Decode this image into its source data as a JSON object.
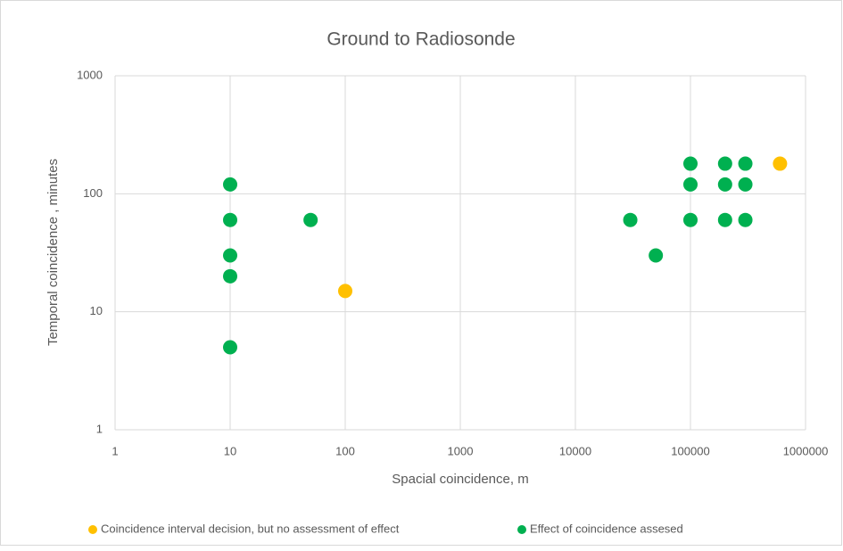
{
  "chart_data": {
    "type": "scatter",
    "title": "Ground to Radiosonde",
    "x_label": "Spacial coincidence, m",
    "y_label": "Temporal coincidence ,  minutes",
    "xscale": "log",
    "yscale": "log",
    "grid": true,
    "legend": "bottom",
    "xlim": [
      1,
      1000000
    ],
    "xticks": [
      1,
      10,
      100,
      1000,
      10000,
      100000,
      1000000
    ],
    "ylim": [
      1,
      1000
    ],
    "yticks": [
      1,
      10,
      100,
      1000
    ],
    "series": [
      {
        "name": "Coincidence interval decision, but no assessment of effect",
        "color": "#ffc000",
        "x": [
          100,
          600000
        ],
        "values": [
          15,
          180
        ]
      },
      {
        "name": "Effect of coincidence assesed",
        "color": "#00b050",
        "x": [
          10,
          10,
          10,
          10,
          10,
          50,
          30000,
          50000,
          100000,
          100000,
          100000,
          200000,
          200000,
          200000,
          300000,
          300000,
          300000
        ],
        "values": [
          120,
          60,
          30,
          20,
          5,
          60,
          60,
          30,
          180,
          120,
          60,
          180,
          120,
          60,
          180,
          120,
          60
        ]
      }
    ]
  }
}
